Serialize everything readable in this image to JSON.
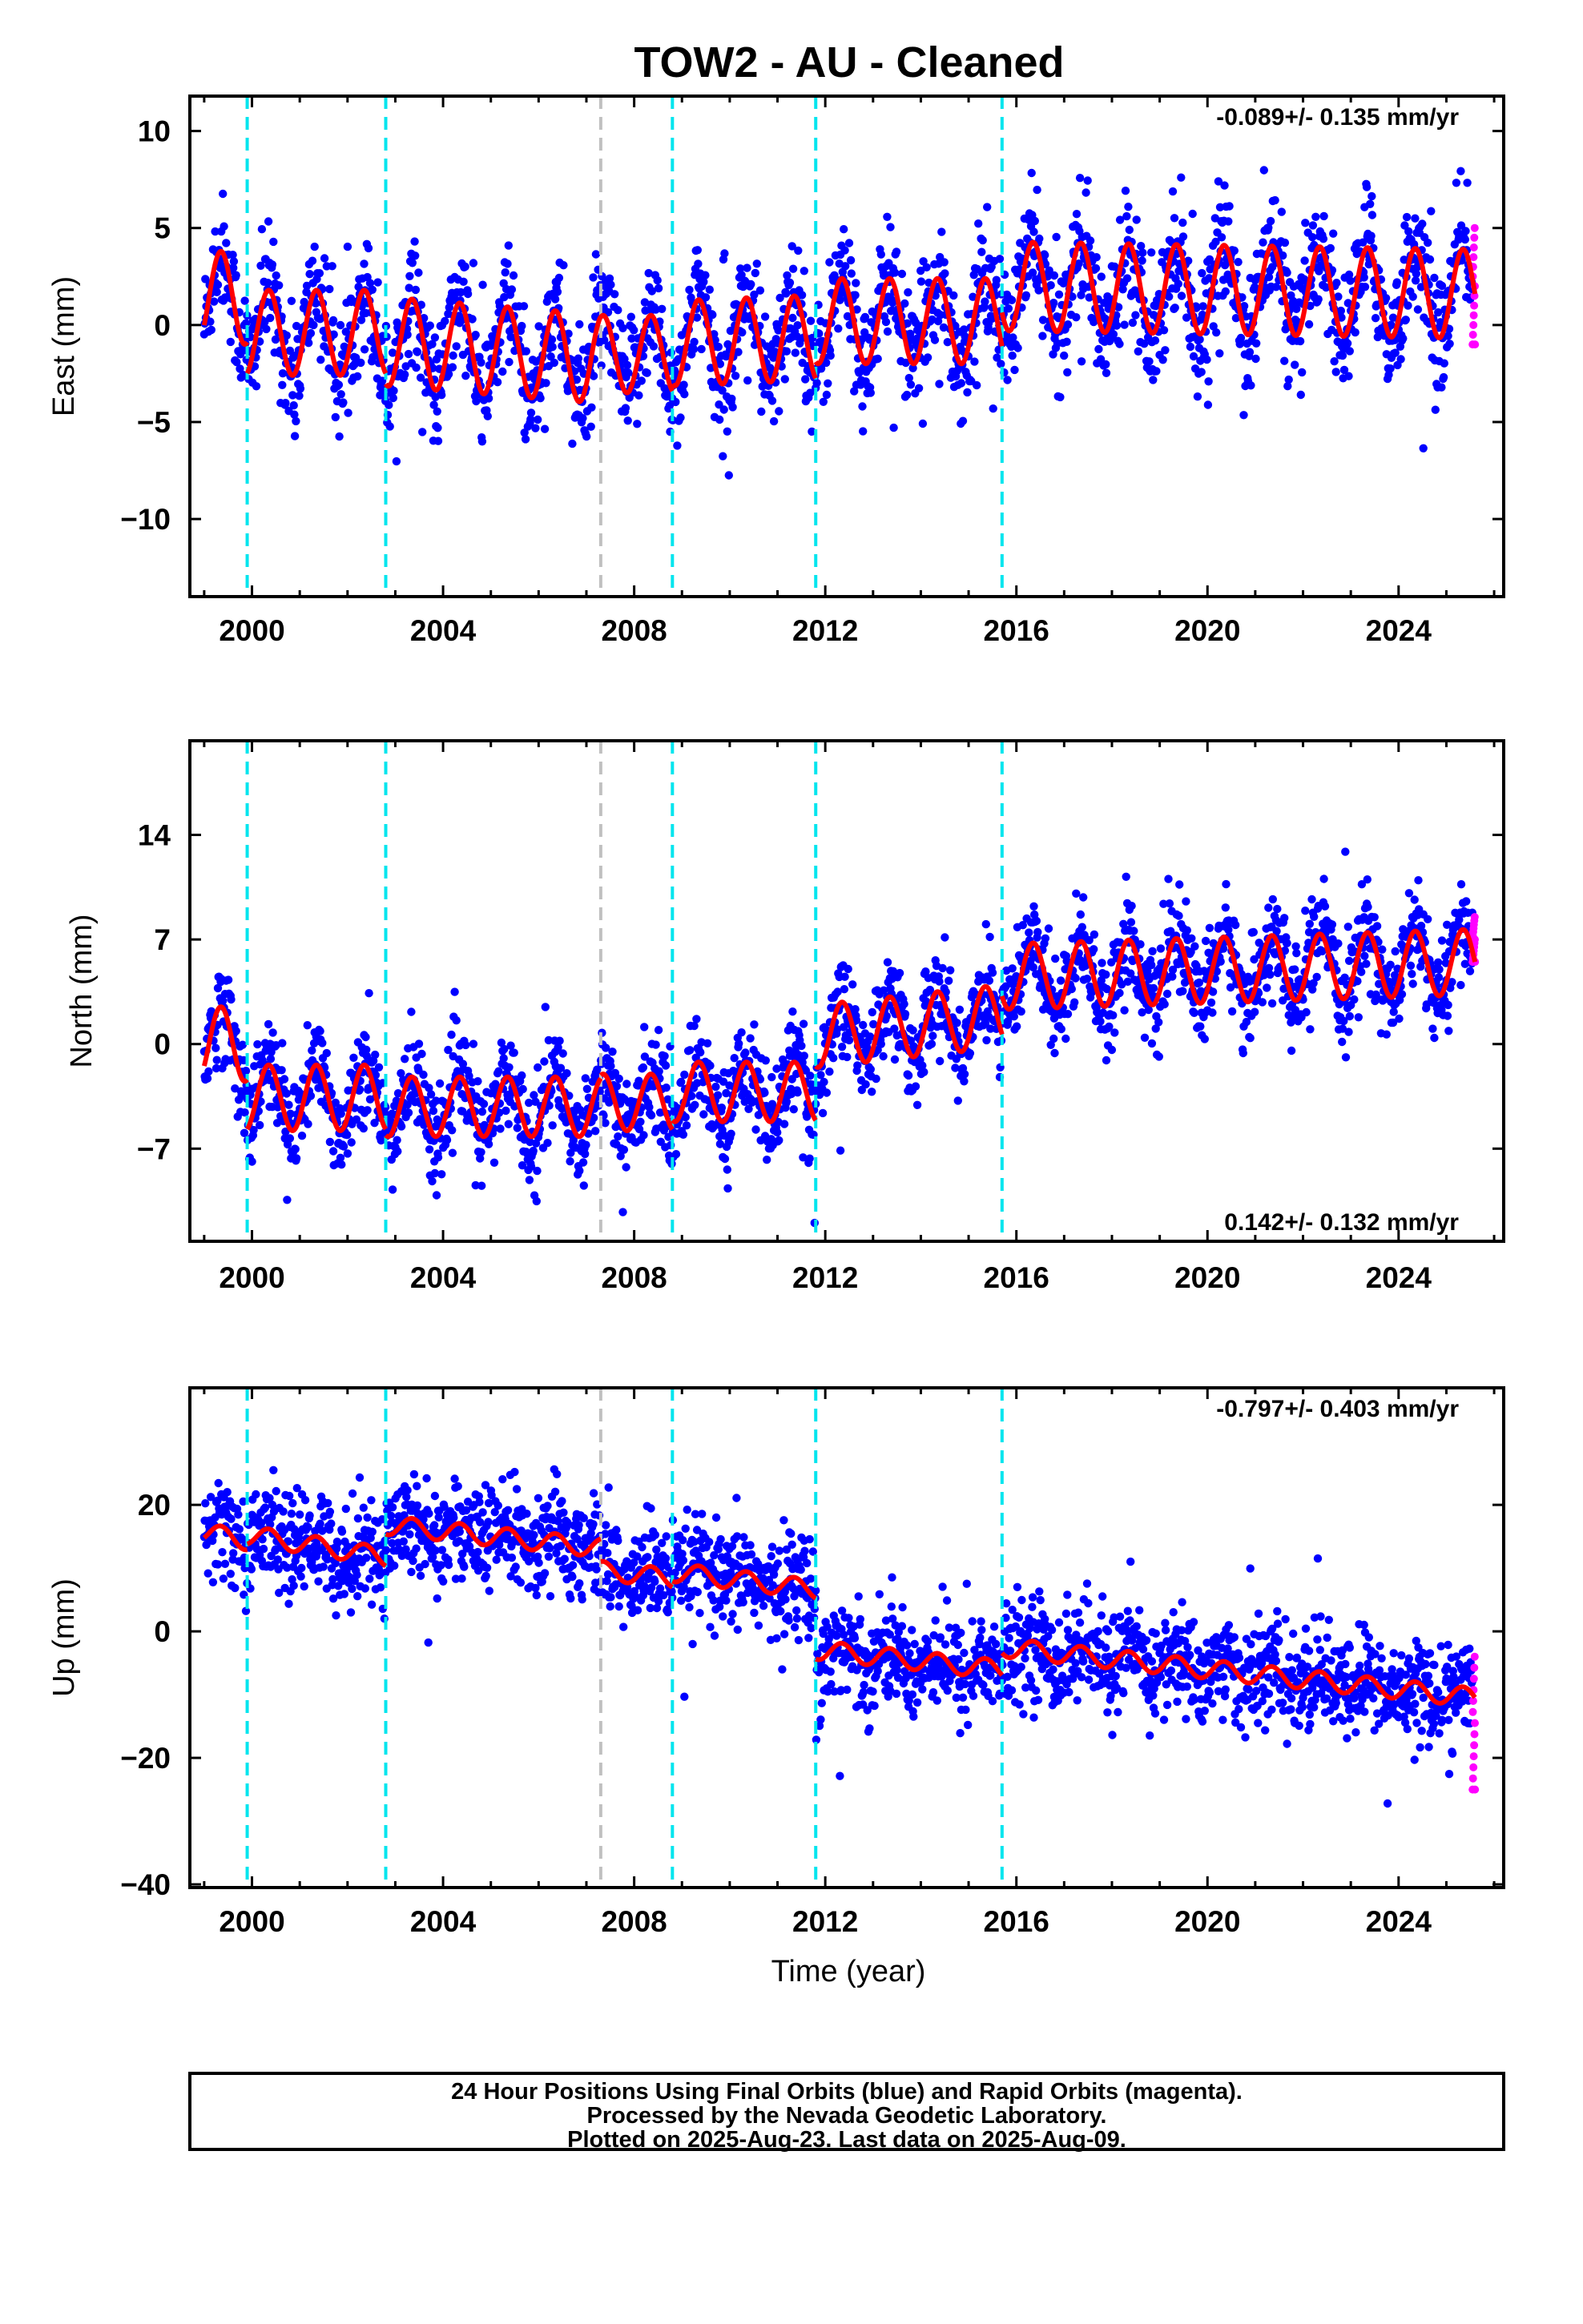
{
  "chart_data": [
    {
      "type": "scatter",
      "title": "TOW2  - AU - Cleaned",
      "ylabel": "East (mm)",
      "xlabel": "",
      "rate": "-0.089+/- 0.135 mm/yr",
      "rate_position": "top-right",
      "xlim": [
        1998.7,
        2026.2
      ],
      "ylim": [
        -14,
        11.8
      ],
      "xticks": [
        2000,
        2004,
        2008,
        2012,
        2016,
        2020,
        2024
      ],
      "yticks": [
        -10,
        -5,
        0,
        5,
        10
      ],
      "ytick_labels": [
        "−10",
        "−5",
        "0",
        "5",
        "10"
      ],
      "grid": false,
      "series": [
        {
          "role": "fit",
          "color": "#ff0000",
          "model": "piecewise linear with annual seasonal",
          "segments": [
            {
              "x": [
                1999.0,
                1999.9
              ],
              "offset": 1.4,
              "rate": 0.0,
              "amp": 2.4
            },
            {
              "x": [
                1999.9,
                2002.8
              ],
              "offset": -0.4,
              "rate": 0.0,
              "amp": 2.2
            },
            {
              "x": [
                2002.8,
                2007.3
              ],
              "offset": -1.3,
              "rate": -0.2,
              "amp": 2.3
            },
            {
              "x": [
                2007.3,
                2008.8
              ],
              "offset": -1.5,
              "rate": 0.0,
              "amp": 2.0
            },
            {
              "x": [
                2008.8,
                2011.8
              ],
              "offset": -0.8,
              "rate": 0.1,
              "amp": 2.2
            },
            {
              "x": [
                2011.8,
                2015.7
              ],
              "offset": 0.2,
              "rate": 0.0,
              "amp": 2.2
            },
            {
              "x": [
                2015.7,
                2025.6
              ],
              "offset": 1.8,
              "rate": -0.04,
              "amp": 2.3
            }
          ]
        },
        {
          "role": "final orbits",
          "color": "#0000ff",
          "noise_sd": 1.5,
          "x_range": [
            1999.0,
            2025.55
          ]
        },
        {
          "role": "rapid orbits",
          "color": "#ff00ff",
          "x": [
            2025.55,
            2025.6
          ],
          "y": [
            -1.0,
            5.0
          ]
        }
      ],
      "equipment_lines": {
        "color": "#00e5ee",
        "x": [
          1999.9,
          2002.8,
          2008.8,
          2011.8,
          2015.7
        ]
      },
      "other_lines": {
        "color": "#c0c0c0",
        "x": [
          2007.3
        ]
      }
    },
    {
      "type": "scatter",
      "ylabel": "North (mm)",
      "xlabel": "",
      "rate": "0.142+/- 0.132 mm/yr",
      "rate_position": "bottom-right",
      "xlim": [
        1998.7,
        2026.2
      ],
      "ylim": [
        -13.2,
        20.3
      ],
      "xticks": [
        2000,
        2004,
        2008,
        2012,
        2016,
        2020,
        2024
      ],
      "yticks": [
        -7,
        0,
        7,
        14
      ],
      "ytick_labels": [
        "−7",
        "0",
        "7",
        "14"
      ],
      "grid": false,
      "series": [
        {
          "role": "fit",
          "color": "#ff0000",
          "model": "piecewise linear with annual seasonal",
          "segments": [
            {
              "x": [
                1999.0,
                1999.9
              ],
              "offset": 0.0,
              "rate": 0.0,
              "amp": 2.5
            },
            {
              "x": [
                1999.9,
                2002.8
              ],
              "offset": -3.6,
              "rate": 0.0,
              "amp": 2.2
            },
            {
              "x": [
                2002.8,
                2007.3
              ],
              "offset": -4.2,
              "rate": 0.0,
              "amp": 2.0
            },
            {
              "x": [
                2007.3,
                2008.8
              ],
              "offset": -3.9,
              "rate": 0.0,
              "amp": 1.9
            },
            {
              "x": [
                2008.8,
                2011.8
              ],
              "offset": -3.2,
              "rate": 0.0,
              "amp": 2.0
            },
            {
              "x": [
                2011.8,
                2015.7
              ],
              "offset": 1.2,
              "rate": 0.35,
              "amp": 2.1
            },
            {
              "x": [
                2015.7,
                2025.6
              ],
              "offset": 5.0,
              "rate": 0.1,
              "amp": 2.2
            }
          ]
        },
        {
          "role": "final orbits",
          "color": "#0000ff",
          "noise_sd": 1.6,
          "x_range": [
            1999.0,
            2025.55
          ]
        },
        {
          "role": "rapid orbits",
          "color": "#ff00ff",
          "x": [
            2025.55,
            2025.6
          ],
          "y": [
            5.5,
            8.5
          ]
        }
      ],
      "equipment_lines": {
        "color": "#00e5ee",
        "x": [
          1999.9,
          2002.8,
          2008.8,
          2011.8,
          2015.7
        ]
      },
      "other_lines": {
        "color": "#c0c0c0",
        "x": [
          2007.3
        ]
      }
    },
    {
      "type": "scatter",
      "ylabel": "Up (mm)",
      "xlabel": "Time (year)",
      "rate": "-0.797+/- 0.403 mm/yr",
      "rate_position": "top-right",
      "xlim": [
        1998.7,
        2026.2
      ],
      "ylim": [
        -40.5,
        38.5
      ],
      "xticks": [
        2000,
        2004,
        2008,
        2012,
        2016,
        2020,
        2024
      ],
      "yticks": [
        -40,
        -20,
        0,
        20
      ],
      "ytick_labels": [
        "−40",
        "−20",
        "0",
        "20"
      ],
      "grid": false,
      "series": [
        {
          "role": "fit",
          "color": "#ff0000",
          "model": "piecewise linear with annual seasonal",
          "segments": [
            {
              "x": [
                1999.0,
                1999.9
              ],
              "offset": 15.0,
              "rate": -1.5,
              "amp": 1.5
            },
            {
              "x": [
                1999.9,
                2002.8
              ],
              "offset": 13.5,
              "rate": -1.2,
              "amp": 1.5
            },
            {
              "x": [
                2002.8,
                2007.3
              ],
              "offset": 15.0,
              "rate": -0.8,
              "amp": 1.5
            },
            {
              "x": [
                2007.3,
                2008.8
              ],
              "offset": 9.0,
              "rate": -0.8,
              "amp": 1.5
            },
            {
              "x": [
                2008.8,
                2011.8
              ],
              "offset": 8.0,
              "rate": -0.9,
              "amp": 1.5
            },
            {
              "x": [
                2011.8,
                2015.7
              ],
              "offset": -4.5,
              "rate": -0.8,
              "amp": 1.5
            },
            {
              "x": [
                2015.7,
                2025.6
              ],
              "offset": -6.5,
              "rate": -0.8,
              "amp": 1.5
            }
          ]
        },
        {
          "role": "final orbits",
          "color": "#0000ff",
          "noise_sd": 4.0,
          "x_range": [
            1999.0,
            2025.55
          ]
        },
        {
          "role": "rapid orbits",
          "color": "#ff00ff",
          "x": [
            2025.55,
            2025.6
          ],
          "y": [
            -25.0,
            -4.0
          ]
        }
      ],
      "equipment_lines": {
        "color": "#00e5ee",
        "x": [
          1999.9,
          2002.8,
          2008.8,
          2011.8,
          2015.7
        ]
      },
      "other_lines": {
        "color": "#c0c0c0",
        "x": [
          2007.3
        ]
      }
    }
  ],
  "footer": {
    "line1": "24 Hour Positions Using Final Orbits (blue) and Rapid Orbits (magenta).",
    "line2": "Processed by the Nevada Geodetic Laboratory.",
    "line3": "Plotted on 2025-Aug-23. Last data on 2025-Aug-09."
  }
}
